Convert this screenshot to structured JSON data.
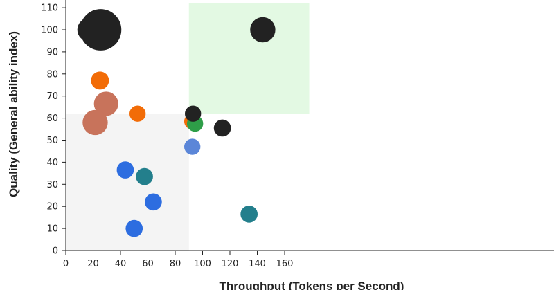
{
  "chart_data": {
    "type": "scatter",
    "title": "",
    "xlabel": "Throughput (Tokens per Second)",
    "ylabel": "Quality (General ability index)",
    "xlim": [
      0,
      178
    ],
    "ylim": [
      0,
      112
    ],
    "x_ticks": [
      0,
      20,
      40,
      60,
      80,
      100,
      120,
      140,
      160
    ],
    "y_ticks": [
      0,
      10,
      20,
      30,
      40,
      50,
      60,
      70,
      80,
      90,
      100,
      110
    ],
    "grid": false,
    "regions": [
      {
        "name": "low-quadrant",
        "x": [
          0,
          90
        ],
        "y": [
          0,
          62
        ],
        "color": "#f4f4f4"
      },
      {
        "name": "high-quadrant",
        "x": [
          90,
          178
        ],
        "y": [
          62,
          112
        ],
        "color": "#e3f9e3"
      }
    ],
    "points": [
      {
        "x": 17,
        "y": 100,
        "size": 1.3,
        "color": "#222222"
      },
      {
        "x": 25.5,
        "y": 100,
        "size": 2.3,
        "color": "#222222"
      },
      {
        "x": 144,
        "y": 100,
        "size": 1.4,
        "color": "#222222"
      },
      {
        "x": 25,
        "y": 77,
        "size": 1.0,
        "color": "#f26c07"
      },
      {
        "x": 29.5,
        "y": 66.5,
        "size": 1.35,
        "color": "#c8735b"
      },
      {
        "x": 21.5,
        "y": 58,
        "size": 1.4,
        "color": "#c8735b"
      },
      {
        "x": 52.5,
        "y": 62,
        "size": 0.9,
        "color": "#f26c07"
      },
      {
        "x": 92.5,
        "y": 58.5,
        "size": 0.9,
        "color": "#f26c07"
      },
      {
        "x": 94.5,
        "y": 57.5,
        "size": 0.9,
        "color": "#2e9e48"
      },
      {
        "x": 93,
        "y": 62,
        "size": 0.9,
        "color": "#222222"
      },
      {
        "x": 114.5,
        "y": 55.5,
        "size": 0.95,
        "color": "#222222"
      },
      {
        "x": 92.5,
        "y": 47,
        "size": 0.9,
        "color": "#5b86d8"
      },
      {
        "x": 43.5,
        "y": 36.5,
        "size": 0.95,
        "color": "#2d6de0"
      },
      {
        "x": 57.5,
        "y": 33.5,
        "size": 0.95,
        "color": "#237f8c"
      },
      {
        "x": 64,
        "y": 22,
        "size": 0.95,
        "color": "#2d6de0"
      },
      {
        "x": 50,
        "y": 10,
        "size": 0.95,
        "color": "#2d6de0"
      },
      {
        "x": 134,
        "y": 16.5,
        "size": 0.95,
        "color": "#237f8c"
      }
    ]
  }
}
